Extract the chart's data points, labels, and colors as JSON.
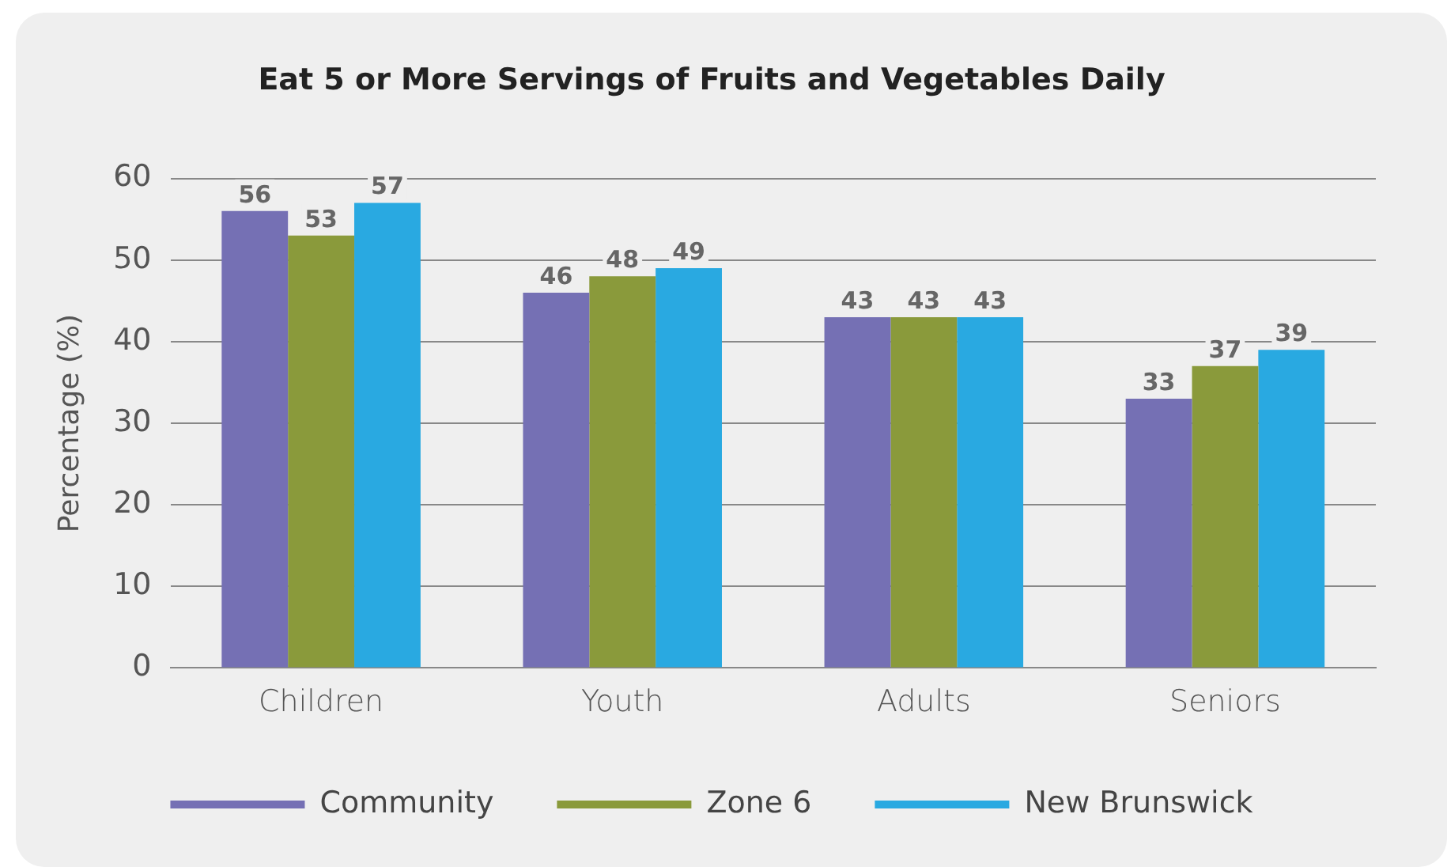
{
  "chart_data": {
    "type": "bar",
    "title": "Eat 5 or More Servings of Fruits and Vegetables Daily",
    "ylabel": "Percentage (%)",
    "categories": [
      "Children",
      "Youth",
      "Adults",
      "Seniors"
    ],
    "series": [
      {
        "name": "Community",
        "color": "#7570b4",
        "values": [
          56,
          46,
          43,
          33
        ]
      },
      {
        "name": "Zone 6",
        "color": "#8a9a3b",
        "values": [
          53,
          48,
          43,
          37
        ]
      },
      {
        "name": "New Brunswick",
        "color": "#29a9e1",
        "values": [
          57,
          49,
          43,
          39
        ]
      }
    ],
    "ylim": [
      0,
      60
    ],
    "yticks": [
      0,
      10,
      20,
      30,
      40,
      50,
      60
    ],
    "grid": "y",
    "legend": "bottom",
    "data_labels": true
  }
}
